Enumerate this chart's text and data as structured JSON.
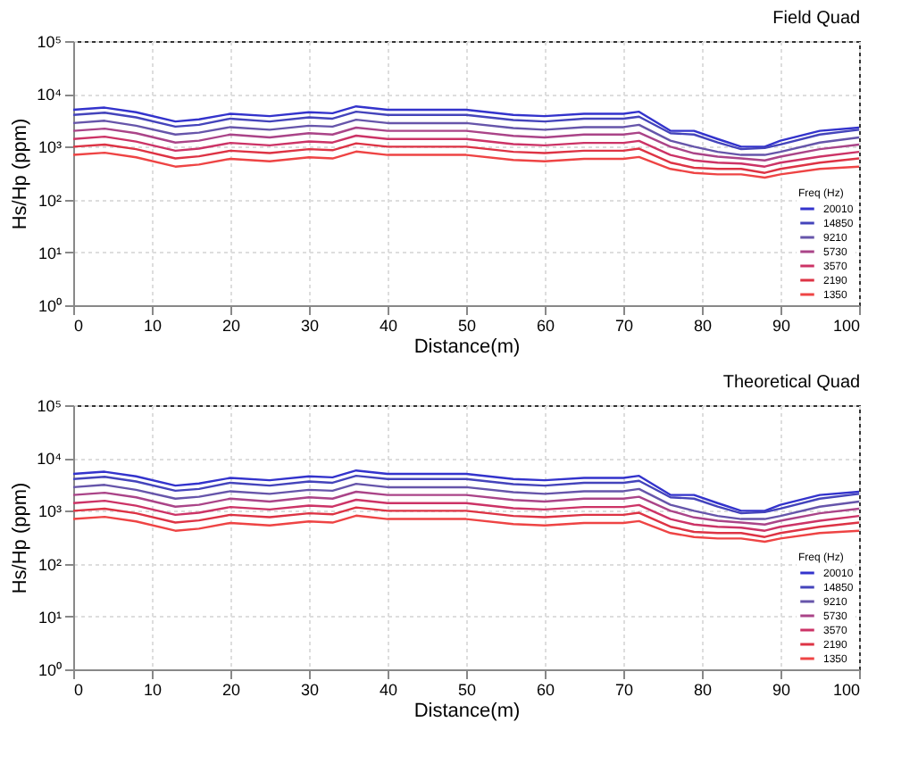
{
  "chart_data": [
    {
      "type": "line",
      "title": "Field Quad",
      "xlabel": "Distance(m)",
      "ylabel": "Hs/Hp (ppm)",
      "legend_title": "Freq (Hz)",
      "legend": "bottom right",
      "grid": true,
      "log": "y",
      "line_style": "solid",
      "x": [
        0,
        4,
        8,
        13,
        16,
        20,
        25,
        30,
        33,
        36,
        40,
        45,
        50,
        56,
        60,
        65,
        70,
        72,
        76,
        79,
        82,
        85,
        88,
        90,
        95,
        100
      ],
      "xlim": [
        0,
        100
      ],
      "xticks": [
        0,
        10,
        20,
        30,
        40,
        50,
        60,
        70,
        80,
        90,
        100
      ],
      "ylim": [
        1,
        100000
      ],
      "yticks": [
        {
          "value": 1,
          "label": "10⁰"
        },
        {
          "value": 10,
          "label": "10¹"
        },
        {
          "value": 100,
          "label": "10²"
        },
        {
          "value": 1000,
          "label": "10³"
        },
        {
          "value": 10000,
          "label": "10⁴"
        },
        {
          "value": 100000,
          "label": "10⁵"
        }
      ],
      "series": [
        {
          "name": "20010",
          "color": "#3333cc",
          "values": [
            5000,
            5500,
            4500,
            3000,
            3300,
            4200,
            3800,
            4500,
            4300,
            5800,
            5000,
            5000,
            5000,
            4000,
            3800,
            4200,
            4200,
            4600,
            2000,
            2000,
            1400,
            1000,
            1000,
            1300,
            2000,
            2300
          ]
        },
        {
          "name": "14850",
          "color": "#4444bb",
          "values": [
            4000,
            4400,
            3600,
            2400,
            2600,
            3400,
            3000,
            3600,
            3400,
            4600,
            4000,
            4000,
            4000,
            3200,
            3000,
            3400,
            3400,
            3700,
            1800,
            1700,
            1200,
            900,
            950,
            1100,
            1700,
            2100
          ]
        },
        {
          "name": "9210",
          "color": "#6655aa",
          "values": [
            2800,
            3100,
            2500,
            1700,
            1850,
            2350,
            2100,
            2500,
            2400,
            3250,
            2800,
            2800,
            2800,
            2250,
            2100,
            2350,
            2350,
            2600,
            1300,
            1000,
            800,
            700,
            700,
            800,
            1200,
            1500
          ]
        },
        {
          "name": "5730",
          "color": "#aa4488",
          "values": [
            2000,
            2200,
            1800,
            1200,
            1300,
            1700,
            1500,
            1800,
            1700,
            2300,
            2000,
            2000,
            2000,
            1600,
            1500,
            1700,
            1700,
            1850,
            1000,
            750,
            650,
            600,
            550,
            650,
            900,
            1100
          ]
        },
        {
          "name": "3570",
          "color": "#cc3366",
          "values": [
            1400,
            1550,
            1250,
            840,
            920,
            1180,
            1060,
            1260,
            1200,
            1620,
            1400,
            1400,
            1400,
            1120,
            1060,
            1180,
            1180,
            1290,
            700,
            550,
            500,
            480,
            420,
            500,
            650,
            800
          ]
        },
        {
          "name": "2190",
          "color": "#dd3344",
          "values": [
            1000,
            1100,
            900,
            600,
            660,
            840,
            760,
            900,
            860,
            1160,
            1000,
            1000,
            1000,
            800,
            760,
            840,
            840,
            920,
            500,
            400,
            380,
            380,
            320,
            380,
            500,
            600
          ]
        },
        {
          "name": "1350",
          "color": "#ee4444",
          "values": [
            700,
            770,
            630,
            420,
            460,
            590,
            530,
            630,
            600,
            810,
            700,
            700,
            700,
            560,
            530,
            590,
            590,
            640,
            380,
            320,
            300,
            300,
            260,
            300,
            380,
            420
          ]
        }
      ]
    },
    {
      "type": "line",
      "title": "Theoretical Quad",
      "xlabel": "Distance(m)",
      "ylabel": "Hs/Hp (ppm)",
      "legend_title": "Freq (Hz)",
      "legend": "bottom right",
      "grid": true,
      "log": "y",
      "line_style": "solid",
      "x": [
        0,
        4,
        8,
        13,
        16,
        20,
        25,
        30,
        33,
        36,
        40,
        45,
        50,
        56,
        60,
        65,
        70,
        72,
        76,
        79,
        82,
        85,
        88,
        90,
        95,
        100
      ],
      "xlim": [
        0,
        100
      ],
      "xticks": [
        0,
        10,
        20,
        30,
        40,
        50,
        60,
        70,
        80,
        90,
        100
      ],
      "ylim": [
        1,
        100000
      ],
      "yticks": [
        {
          "value": 1,
          "label": "10⁰"
        },
        {
          "value": 10,
          "label": "10¹"
        },
        {
          "value": 100,
          "label": "10²"
        },
        {
          "value": 1000,
          "label": "10³"
        },
        {
          "value": 10000,
          "label": "10⁴"
        },
        {
          "value": 100000,
          "label": "10⁵"
        }
      ],
      "series": [
        {
          "name": "20010",
          "color": "#3333cc",
          "values": [
            5000,
            5500,
            4500,
            3000,
            3300,
            4200,
            3800,
            4500,
            4300,
            5800,
            5000,
            5000,
            5000,
            4000,
            3800,
            4200,
            4200,
            4600,
            2000,
            2000,
            1400,
            1000,
            1000,
            1300,
            2000,
            2300
          ]
        },
        {
          "name": "14850",
          "color": "#4444bb",
          "values": [
            4000,
            4400,
            3600,
            2400,
            2600,
            3400,
            3000,
            3600,
            3400,
            4600,
            4000,
            4000,
            4000,
            3200,
            3000,
            3400,
            3400,
            3700,
            1800,
            1700,
            1200,
            900,
            950,
            1100,
            1700,
            2100
          ]
        },
        {
          "name": "9210",
          "color": "#6655aa",
          "values": [
            2800,
            3100,
            2500,
            1700,
            1850,
            2350,
            2100,
            2500,
            2400,
            3250,
            2800,
            2800,
            2800,
            2250,
            2100,
            2350,
            2350,
            2600,
            1300,
            1000,
            800,
            700,
            700,
            800,
            1200,
            1500
          ]
        },
        {
          "name": "5730",
          "color": "#aa4488",
          "values": [
            2000,
            2200,
            1800,
            1200,
            1300,
            1700,
            1500,
            1800,
            1700,
            2300,
            2000,
            2000,
            2000,
            1600,
            1500,
            1700,
            1700,
            1850,
            1000,
            750,
            650,
            600,
            550,
            650,
            900,
            1100
          ]
        },
        {
          "name": "3570",
          "color": "#cc3366",
          "values": [
            1400,
            1550,
            1250,
            840,
            920,
            1180,
            1060,
            1260,
            1200,
            1620,
            1400,
            1400,
            1400,
            1120,
            1060,
            1180,
            1180,
            1290,
            700,
            550,
            500,
            480,
            420,
            500,
            650,
            800
          ]
        },
        {
          "name": "2190",
          "color": "#dd3344",
          "values": [
            1000,
            1100,
            900,
            600,
            660,
            840,
            760,
            900,
            860,
            1160,
            1000,
            1000,
            1000,
            800,
            760,
            840,
            840,
            920,
            500,
            400,
            380,
            380,
            320,
            380,
            500,
            600
          ]
        },
        {
          "name": "1350",
          "color": "#ee4444",
          "values": [
            700,
            770,
            630,
            420,
            460,
            590,
            530,
            630,
            600,
            810,
            700,
            700,
            700,
            560,
            530,
            590,
            590,
            640,
            380,
            320,
            300,
            300,
            260,
            300,
            380,
            420
          ]
        }
      ]
    }
  ]
}
